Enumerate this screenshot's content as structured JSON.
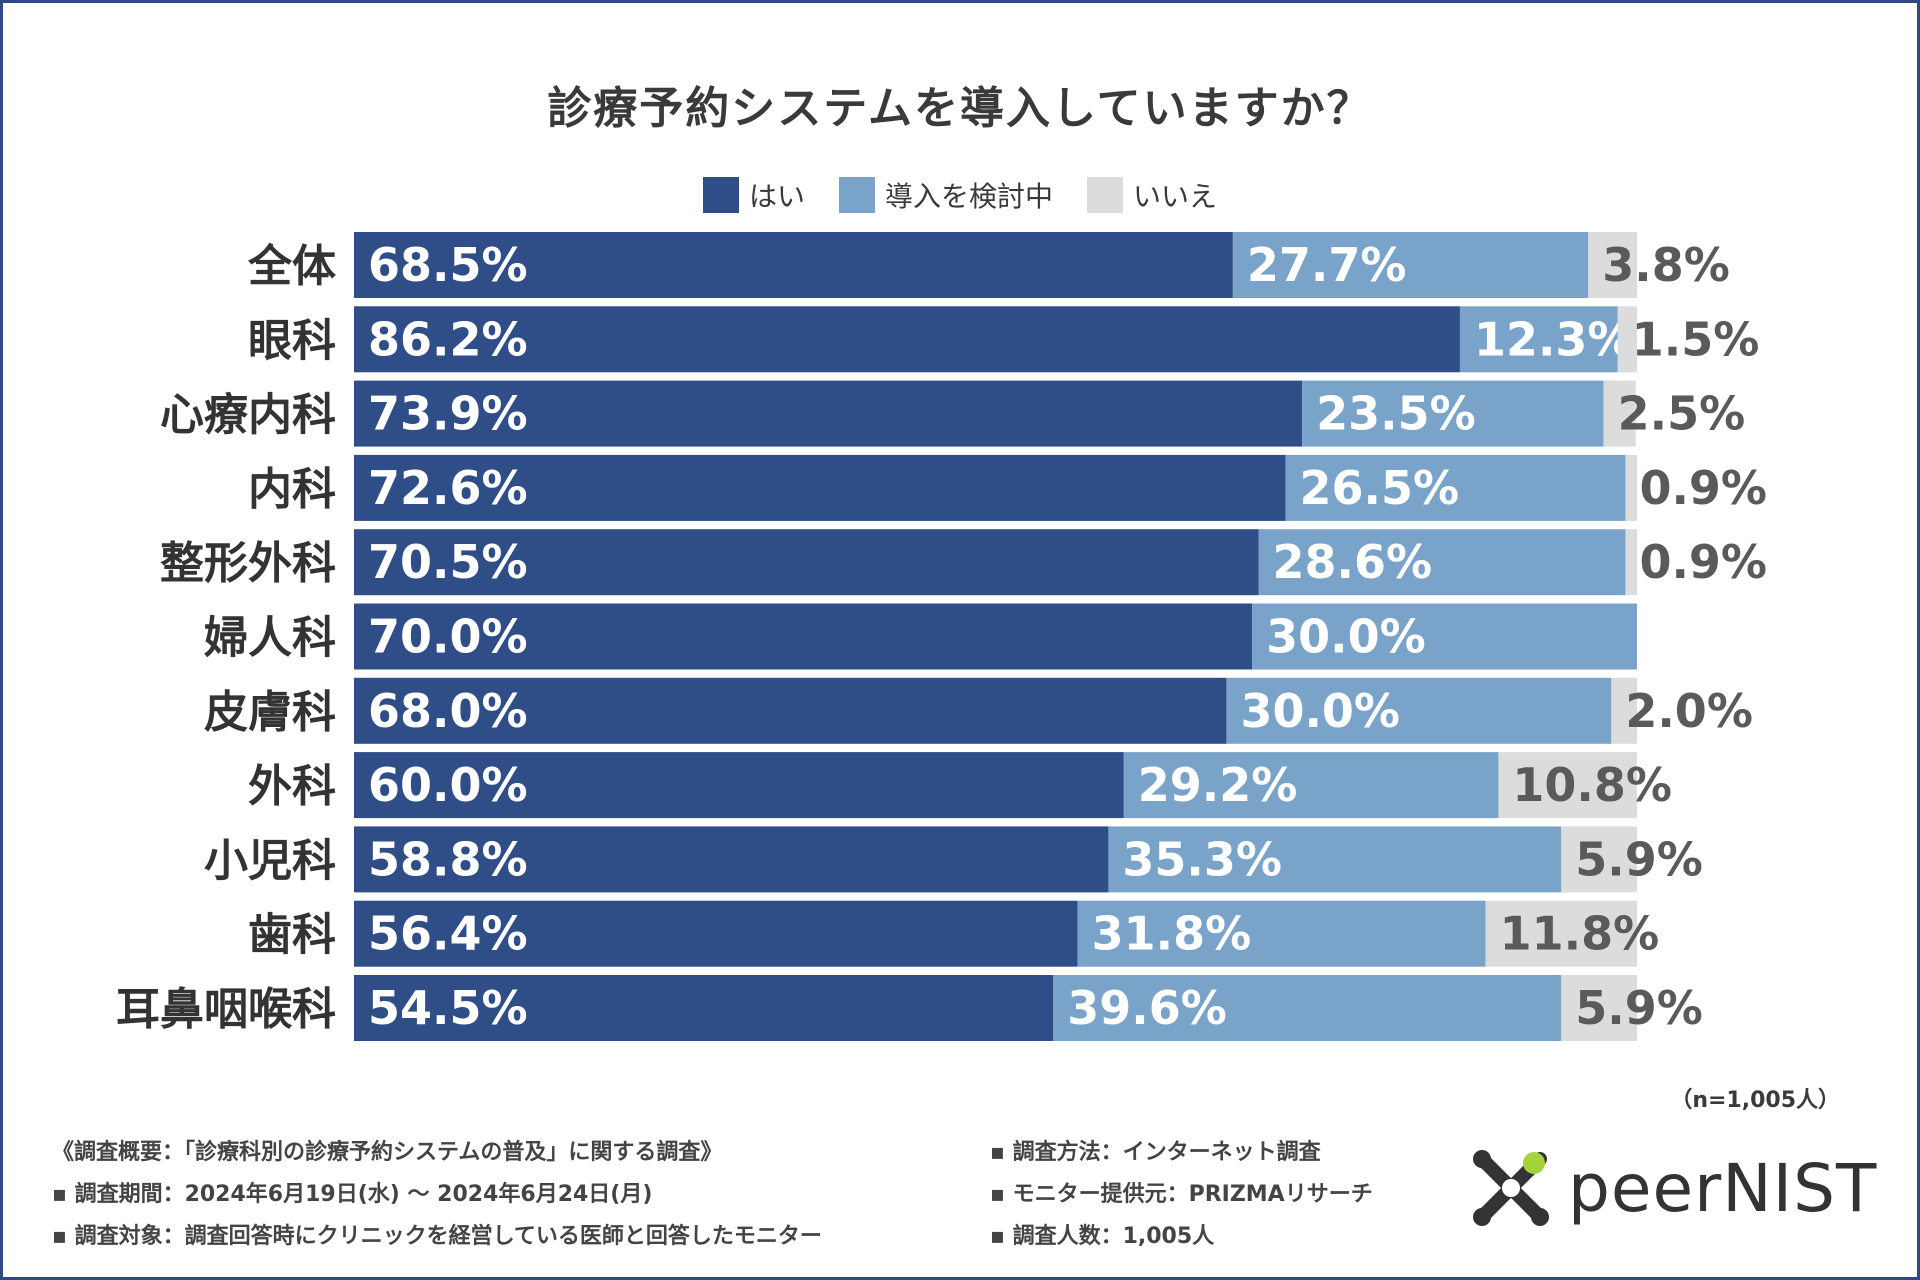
{
  "title": "診療予約システムを導入していますか？",
  "colors": {
    "yes": "#2f4d86",
    "considering": "#79a3c9",
    "no": "#dcdcdc",
    "label_dark": "#5a5a5a"
  },
  "legend": [
    {
      "label": "はい",
      "color": "#2f4d86"
    },
    {
      "label": "導入を検討中",
      "color": "#79a3c9"
    },
    {
      "label": "いいえ",
      "color": "#dcdcdc"
    }
  ],
  "chart_data": {
    "type": "bar",
    "orientation": "horizontal-stacked-100",
    "title": "診療予約システムを導入していますか？",
    "categories": [
      "全体",
      "眼科",
      "心療内科",
      "内科",
      "整形外科",
      "婦人科",
      "皮膚科",
      "外科",
      "小児科",
      "歯科",
      "耳鼻咽喉科"
    ],
    "series": [
      {
        "name": "はい",
        "values": [
          68.5,
          86.2,
          73.9,
          72.6,
          70.5,
          70.0,
          68.0,
          60.0,
          58.8,
          56.4,
          54.5
        ],
        "labels": [
          "68.5%",
          "86.2%",
          "73.9%",
          "72.6%",
          "70.5%",
          "70.0%",
          "68.0%",
          "60.0%",
          "58.8%",
          "56.4%",
          "54.5%"
        ]
      },
      {
        "name": "導入を検討中",
        "values": [
          27.7,
          12.3,
          23.5,
          26.5,
          28.6,
          30.0,
          30.0,
          29.2,
          35.3,
          31.8,
          39.6
        ],
        "labels": [
          "27.7%",
          "12.3%",
          "23.5%",
          "26.5%",
          "28.6%",
          "30.0%",
          "30.0%",
          "29.2%",
          "35.3%",
          "31.8%",
          "39.6%"
        ]
      },
      {
        "name": "いいえ",
        "values": [
          3.8,
          1.5,
          2.5,
          0.9,
          0.9,
          0.0,
          2.0,
          10.8,
          5.9,
          11.8,
          5.9
        ],
        "labels": [
          "3.8%",
          "1.5%",
          "2.5%",
          "0.9%",
          "0.9%",
          "",
          "2.0%",
          "10.8%",
          "5.9%",
          "11.8%",
          "5.9%"
        ]
      }
    ],
    "xlim": [
      0,
      100
    ],
    "xlabel": "",
    "ylabel": ""
  },
  "sample_size": "（n=1,005人）",
  "footer": {
    "left": [
      "《調査概要：「診療科別の診療予約システムの普及」に関する調査》",
      "▪ 調査期間：2024年6月19日(水) ～ 2024年6月24日(月)",
      "▪ 調査対象：調査回答時にクリニックを経営している医師と回答したモニター"
    ],
    "right": [
      "▪ 調査方法：インターネット調査",
      "▪ モニター提供元：PRIZMAリサーチ",
      "▪ 調査人数：1,005人"
    ]
  },
  "logo": {
    "text": "peerNIST",
    "icon": "peernist-logo-icon"
  }
}
